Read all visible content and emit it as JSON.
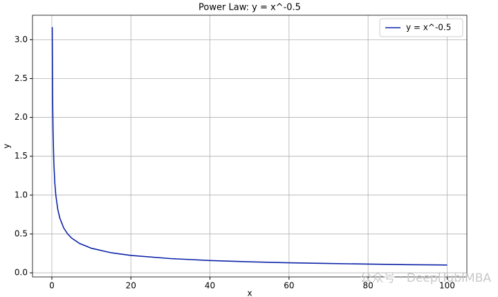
{
  "chart_data": {
    "type": "line",
    "title": "Power Law: y = x^-0.5",
    "x_label": "x",
    "y_label": "y",
    "x": [
      0.1,
      0.2,
      0.3,
      0.5,
      0.75,
      1,
      1.5,
      2,
      3,
      4,
      5,
      7,
      10,
      15,
      20,
      30,
      40,
      50,
      60,
      70,
      80,
      90,
      100
    ],
    "series": [
      {
        "name": "y = x^-0.5",
        "color": "#0b22a8",
        "values": [
          3.162,
          2.236,
          1.826,
          1.414,
          1.155,
          1,
          0.816,
          0.707,
          0.577,
          0.5,
          0.447,
          0.378,
          0.316,
          0.258,
          0.224,
          0.183,
          0.158,
          0.141,
          0.129,
          0.12,
          0.112,
          0.105,
          0.1
        ]
      }
    ],
    "xlim": [
      -4.895,
      104.995
    ],
    "ylim": [
      -0.053,
      3.315
    ],
    "xticks": [
      0,
      20,
      40,
      60,
      80,
      100
    ],
    "yticks": [
      {
        "value": 0,
        "label": "0.0"
      },
      0.5,
      {
        "value": 1,
        "label": "1.0"
      },
      1.5,
      {
        "value": 2,
        "label": "2.0"
      },
      2.5,
      {
        "value": 3,
        "label": "3.0"
      }
    ],
    "grid": true,
    "legend": "upper right",
    "watermark": "公众号 · DeepHubIMBA"
  }
}
